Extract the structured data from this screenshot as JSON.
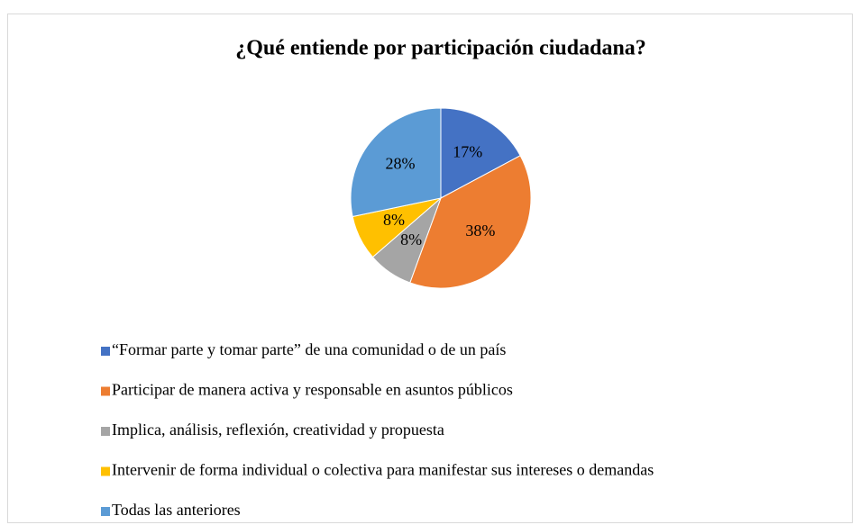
{
  "chart_data": {
    "type": "pie",
    "title": "¿Qué entiende por participación ciudadana?",
    "categories": [
      "“Formar parte y tomar parte” de una comunidad o de un país",
      "Participar de manera activa y responsable en asuntos públicos",
      "Implica, análisis, reflexión, creatividad y propuesta",
      "Intervenir de forma individual o colectiva para manifestar sus intereses o demandas",
      "Todas las anteriores"
    ],
    "values": [
      17,
      38,
      8,
      8,
      28
    ],
    "value_labels": [
      "17%",
      "38%",
      "8%",
      "8%",
      "28%"
    ],
    "colors": [
      "#4472c4",
      "#ed7d31",
      "#a5a5a5",
      "#ffc000",
      "#5b9bd5"
    ],
    "legend": "bottom"
  }
}
